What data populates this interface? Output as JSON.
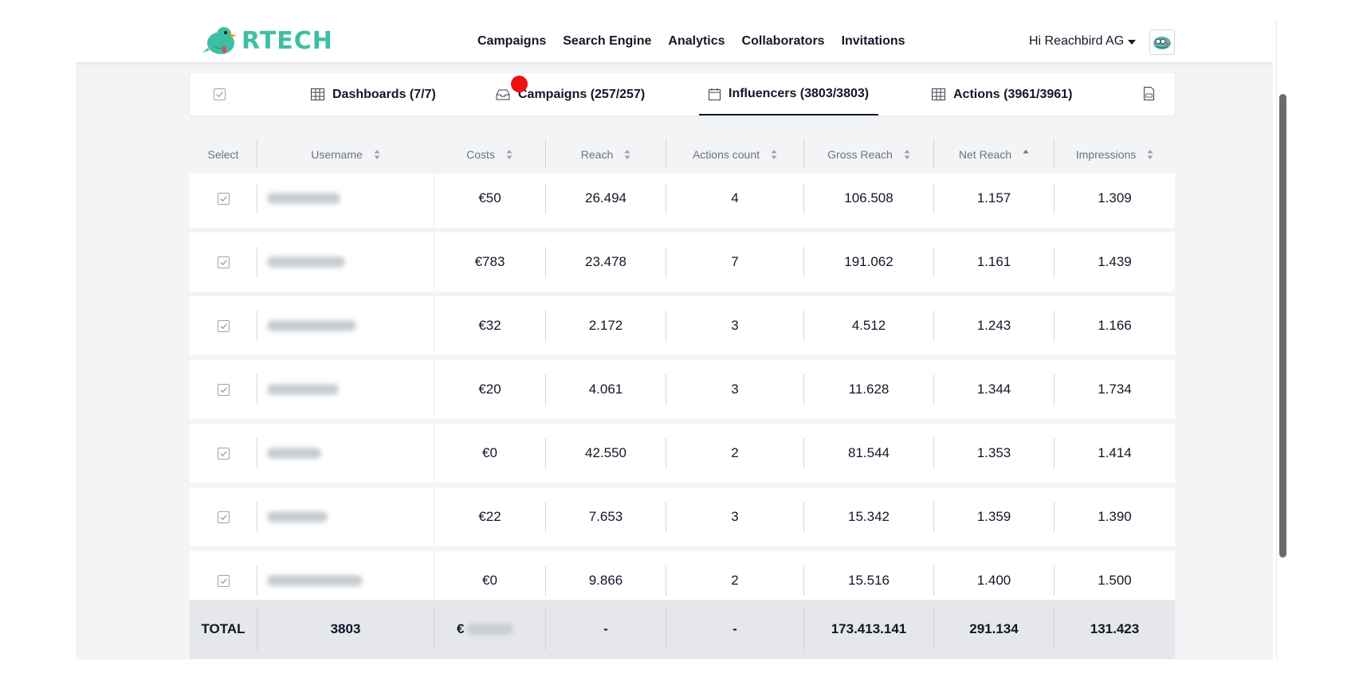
{
  "brand": {
    "name": "RTECH"
  },
  "nav": [
    "Campaigns",
    "Search Engine",
    "Analytics",
    "Collaborators",
    "Invitations"
  ],
  "user": {
    "greeting": "Hi Reachbird AG"
  },
  "tabs": {
    "dashboards": "Dashboards (7/7)",
    "campaigns": "Campaigns (257/257)",
    "influencers": "Influencers (3803/3803)",
    "actions": "Actions (3961/3961)"
  },
  "table": {
    "columns": {
      "select": "Select",
      "username": "Username",
      "costs": "Costs",
      "reach": "Reach",
      "actions_count": "Actions count",
      "gross_reach": "Gross Reach",
      "net_reach": "Net Reach",
      "impressions": "Impressions"
    },
    "rows": [
      {
        "costs": "€50",
        "reach": "26.494",
        "actions": "4",
        "gross": "106.508",
        "net": "1.157",
        "impressions": "1.309"
      },
      {
        "costs": "€783",
        "reach": "23.478",
        "actions": "7",
        "gross": "191.062",
        "net": "1.161",
        "impressions": "1.439"
      },
      {
        "costs": "€32",
        "reach": "2.172",
        "actions": "3",
        "gross": "4.512",
        "net": "1.243",
        "impressions": "1.166"
      },
      {
        "costs": "€20",
        "reach": "4.061",
        "actions": "3",
        "gross": "11.628",
        "net": "1.344",
        "impressions": "1.734"
      },
      {
        "costs": "€0",
        "reach": "42.550",
        "actions": "2",
        "gross": "81.544",
        "net": "1.353",
        "impressions": "1.414"
      },
      {
        "costs": "€22",
        "reach": "7.653",
        "actions": "3",
        "gross": "15.342",
        "net": "1.359",
        "impressions": "1.390"
      },
      {
        "costs": "€0",
        "reach": "9.866",
        "actions": "2",
        "gross": "15.516",
        "net": "1.400",
        "impressions": "1.500"
      }
    ],
    "total": {
      "label": "TOTAL",
      "username": "3803",
      "costs_prefix": "€",
      "reach": "-",
      "actions": "-",
      "gross": "173.413.141",
      "net": "291.134",
      "impressions": "131.423"
    }
  },
  "colors": {
    "brand": "#3dbfa3",
    "notification": "#ee1111",
    "row_bg": "#ffffff",
    "total_bg": "#e5e7eb"
  }
}
